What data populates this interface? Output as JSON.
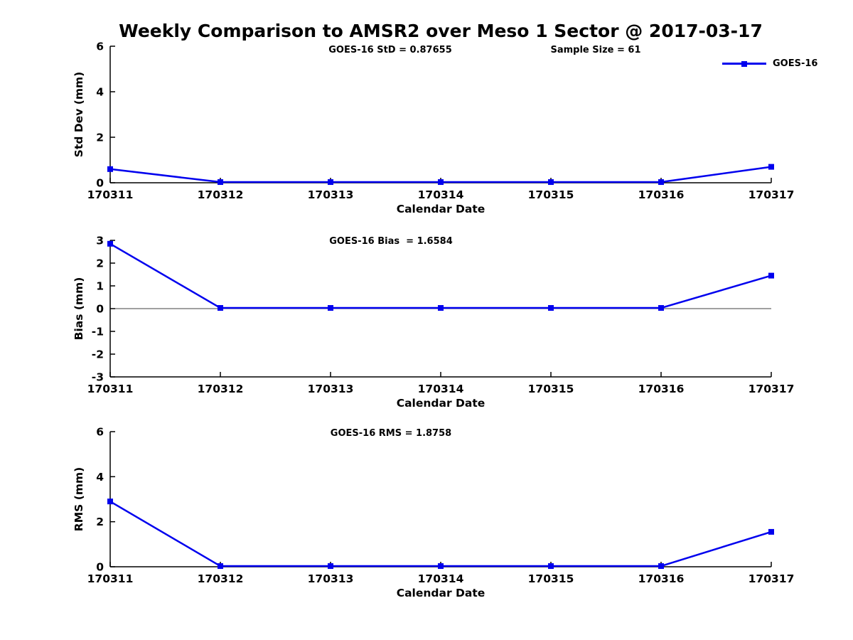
{
  "title": "Weekly Comparison to AMSR2 over Meso 1 Sector @ 2017-03-17",
  "legend": {
    "label": "GOES-16",
    "color": "#0000EE"
  },
  "axis_color": "#000000",
  "zero_line_color": "#404040",
  "chart_data": [
    {
      "type": "line",
      "panel": "std-dev",
      "annotations": [
        "GOES-16 StD = 0.87655",
        "Sample Size = 61"
      ],
      "categories": [
        "170311",
        "170312",
        "170313",
        "170314",
        "170315",
        "170316",
        "170317"
      ],
      "series": [
        {
          "name": "GOES-16",
          "values": [
            0.6,
            0.03,
            0.03,
            0.03,
            0.03,
            0.03,
            0.7
          ]
        }
      ],
      "xlabel": "Calendar Date",
      "ylabel": "Std Dev (mm)",
      "ylim": [
        0,
        6
      ],
      "yticks": [
        0,
        2,
        4,
        6
      ],
      "grid": false,
      "legend_position": "top-right-outside"
    },
    {
      "type": "line",
      "panel": "bias",
      "annotations": [
        "GOES-16 Bias  = 1.6584"
      ],
      "categories": [
        "170311",
        "170312",
        "170313",
        "170314",
        "170315",
        "170316",
        "170317"
      ],
      "series": [
        {
          "name": "GOES-16",
          "values": [
            2.85,
            0.03,
            0.03,
            0.03,
            0.03,
            0.03,
            1.45
          ]
        }
      ],
      "xlabel": "Calendar Date",
      "ylabel": "Bias (mm)",
      "ylim": [
        -3,
        3
      ],
      "yticks": [
        -3,
        -2,
        -1,
        0,
        1,
        2,
        3
      ],
      "zero_line": true,
      "grid": false
    },
    {
      "type": "line",
      "panel": "rms",
      "annotations": [
        "GOES-16 RMS = 1.8758"
      ],
      "categories": [
        "170311",
        "170312",
        "170313",
        "170314",
        "170315",
        "170316",
        "170317"
      ],
      "series": [
        {
          "name": "GOES-16",
          "values": [
            2.9,
            0.03,
            0.03,
            0.03,
            0.03,
            0.03,
            1.55
          ]
        }
      ],
      "xlabel": "Calendar Date",
      "ylabel": "RMS (mm)",
      "ylim": [
        0,
        6
      ],
      "yticks": [
        0,
        2,
        4,
        6
      ],
      "grid": false
    }
  ]
}
